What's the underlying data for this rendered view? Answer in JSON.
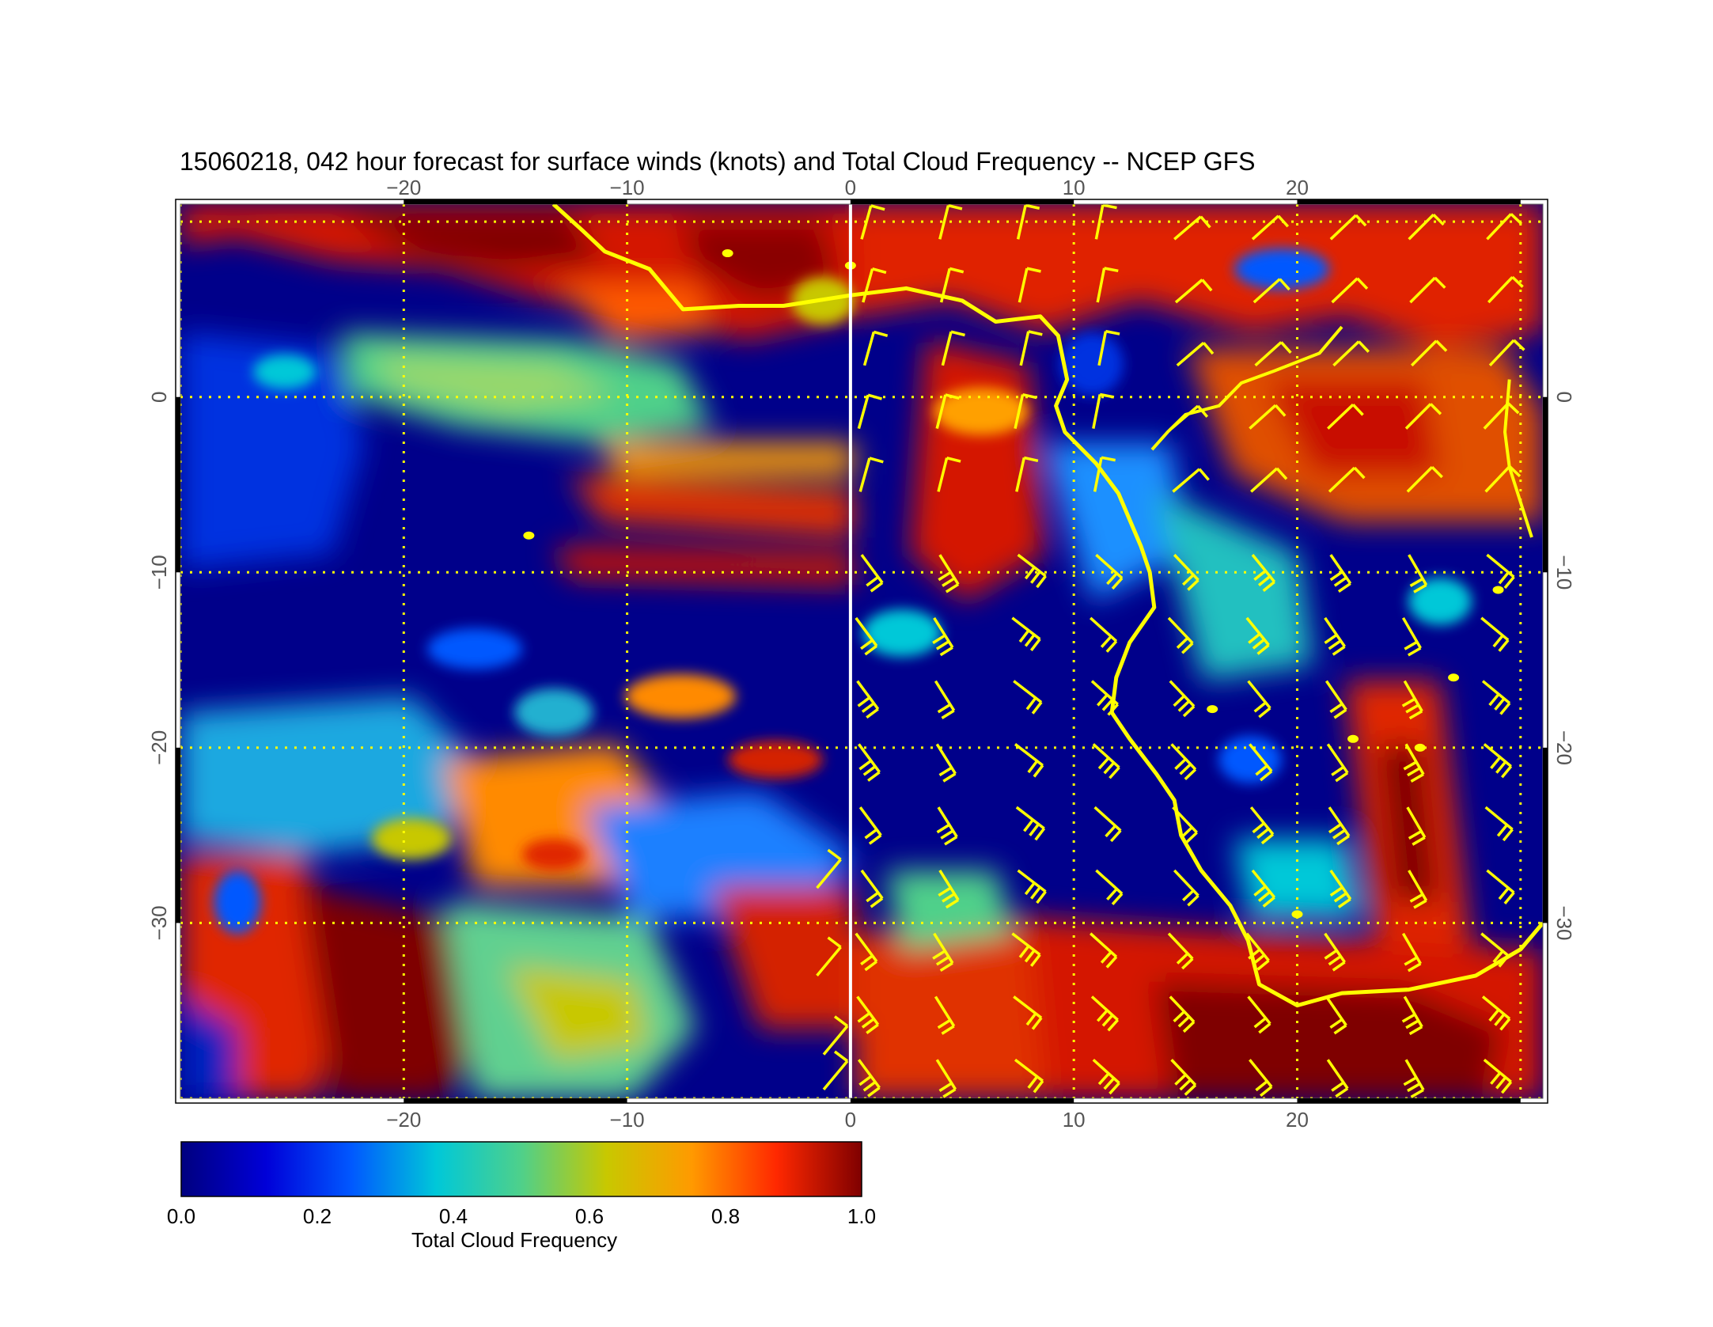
{
  "title": "15060218, 042 hour forecast for surface winds (knots) and Total Cloud Frequency -- NCEP GFS",
  "colorbar": {
    "label": "Total Cloud Frequency",
    "ticks": [
      "0.0",
      "0.2",
      "0.4",
      "0.6",
      "0.8",
      "1.0"
    ],
    "range": [
      0.0,
      1.0
    ],
    "colormap": [
      "#00007f",
      "#0000d8",
      "#0058ff",
      "#00c8d8",
      "#4fd08a",
      "#c8c800",
      "#ff9a00",
      "#ff2800",
      "#7f0000"
    ]
  },
  "map": {
    "lon_range": [
      -30,
      31
    ],
    "lat_range": [
      -40,
      11
    ],
    "lon_ticks": [
      "−20",
      "−10",
      "0",
      "10",
      "20"
    ],
    "lat_ticks": [
      "0",
      "−10",
      "−20",
      "−30"
    ],
    "grid_color": "#ffff00",
    "coastline_color": "#ffff00",
    "barb_color": "#ffff00"
  }
}
